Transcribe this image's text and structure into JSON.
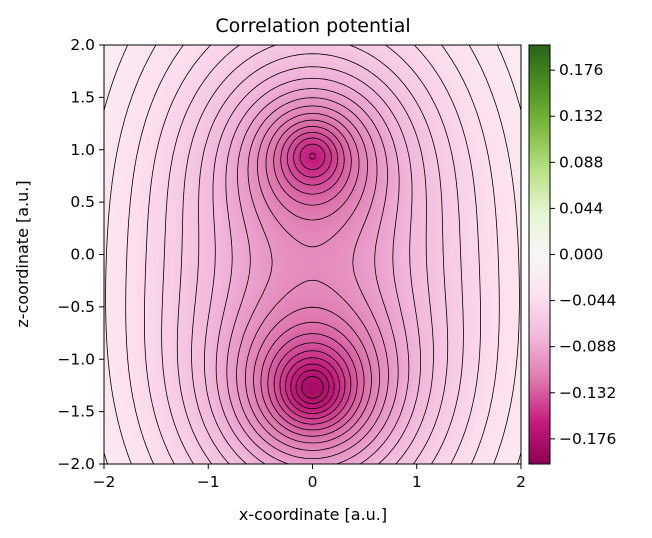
{
  "chart_data": {
    "type": "heatmap",
    "title": "Correlation potential",
    "xlabel": "x-coordinate [a.u.]",
    "ylabel": "z-coordinate [a.u.]",
    "xlim": [
      -2,
      2
    ],
    "ylim": [
      -2,
      2
    ],
    "x_ticks": [
      "−2",
      "−1",
      "0",
      "1",
      "2"
    ],
    "y_ticks": [
      "−2.0",
      "−1.5",
      "−1.0",
      "−0.5",
      "0.0",
      "0.5",
      "1.0",
      "1.5",
      "2.0"
    ],
    "colorbar_ticks": [
      "−0.176",
      "−0.132",
      "−0.088",
      "−0.044",
      "0.000",
      "0.044",
      "0.088",
      "0.132",
      "0.176"
    ],
    "colorbar_range": [
      -0.2,
      0.2
    ],
    "colormap": "PiYG",
    "contour_style": "black dashed",
    "field_minima": [
      {
        "x": 0.0,
        "z": 0.95
      },
      {
        "x": 0.0,
        "z": -1.28
      }
    ]
  },
  "colors": {
    "cmap": [
      "#8e0152",
      "#c51b7d",
      "#de77ae",
      "#f1b6da",
      "#fde0ef",
      "#f7f7f7",
      "#e6f5d0",
      "#b8e186",
      "#7fbc41",
      "#4d9221",
      "#276419"
    ]
  }
}
